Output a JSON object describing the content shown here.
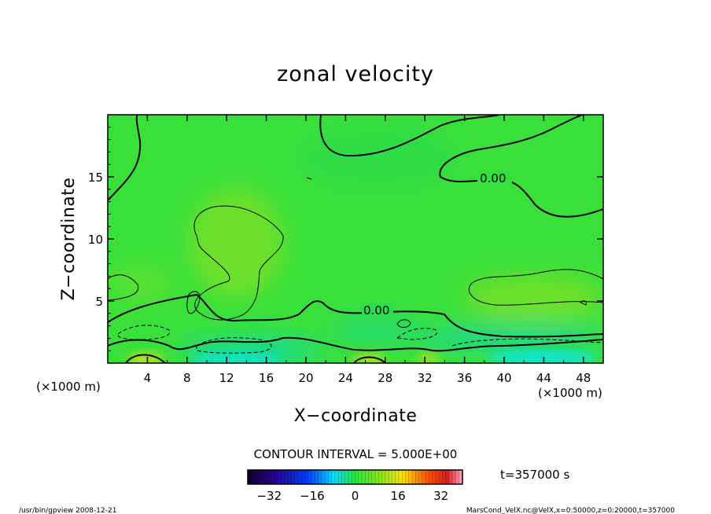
{
  "chart_data": {
    "type": "heatmap",
    "title": "zonal velocity",
    "xlabel": "X−coordinate",
    "ylabel": "Z−coordinate",
    "x_unit_left": "(×1000 m)",
    "x_unit_right": "(×1000 m)",
    "xlim": [
      0,
      50
    ],
    "ylim": [
      0,
      20
    ],
    "x_ticks": [
      4,
      8,
      12,
      16,
      20,
      24,
      28,
      32,
      36,
      40,
      44,
      48
    ],
    "y_ticks": [
      5,
      10,
      15
    ],
    "contour_interval_text": "CONTOUR INTERVAL = 5.000E+00",
    "contour_labels": [
      "0.00",
      "0.00"
    ],
    "colorbar": {
      "range": [
        -40,
        40
      ],
      "ticks": [
        -32,
        -16,
        0,
        16,
        32
      ],
      "tick_labels": [
        "−32",
        "−16",
        "0",
        "16",
        "32"
      ]
    },
    "time_label": "t=357000 s",
    "grid": false
  },
  "footer": {
    "left": "/usr/bin/gpview  2008-12-21",
    "right": "MarsCond_VelX.nc@VelX,x=0:50000,z=0:20000,t=357000"
  }
}
